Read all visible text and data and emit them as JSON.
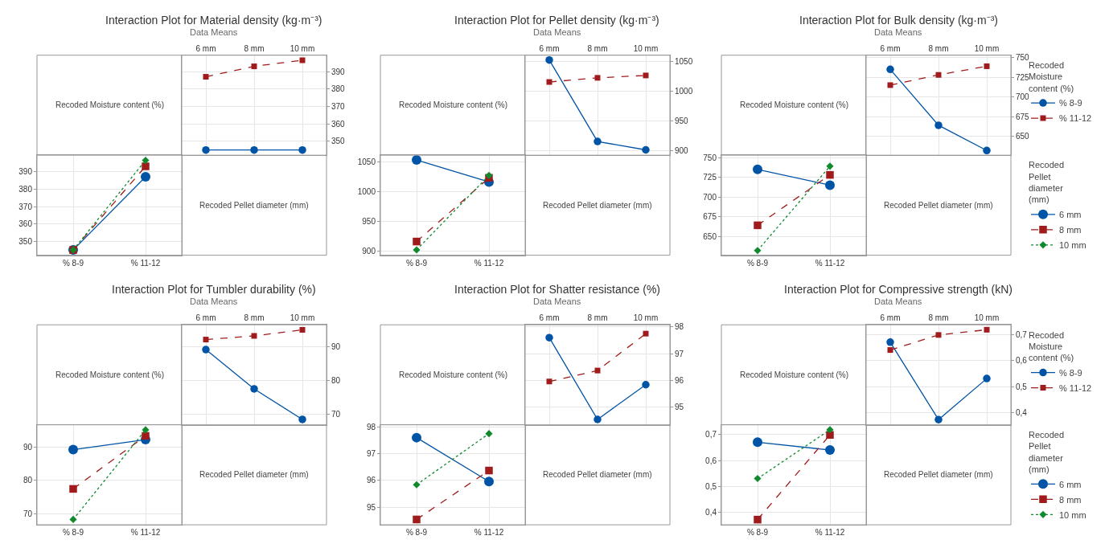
{
  "chart_data": [
    {
      "type": "line",
      "title": "Interaction Plot for Material density (kg·m⁻³)",
      "subtitle": "Data Means",
      "xlabel": "Recoded Pellet diameter (mm)",
      "categories": [
        "6 mm",
        "8 mm",
        "10 mm"
      ],
      "ylim": [
        342,
        399.5
      ],
      "yticks": [
        350,
        360,
        370,
        380,
        390
      ],
      "grid": true,
      "series": [
        {
          "color": "#0054a6",
          "marker": "circle",
          "line_style": "solid",
          "values": [
            345,
            345,
            345
          ]
        },
        {
          "color": "#a01c1c",
          "marker": "square",
          "line_style": "dashed",
          "values": [
            387.1,
            393.1,
            396.6
          ]
        }
      ]
    },
    {
      "type": "line",
      "xlabel": "Recoded Moisture content (%)",
      "categories": [
        "% 8-9",
        "% 11-12"
      ],
      "ylim": [
        342,
        399.5
      ],
      "yticks": [
        350,
        360,
        370,
        380,
        390
      ],
      "grid": true,
      "series": [
        {
          "color": "#0054a6",
          "marker": "circle",
          "line_style": "solid",
          "values": [
            345,
            387.1
          ]
        },
        {
          "color": "#a01c1c",
          "marker": "square",
          "line_style": "dashed",
          "values": [
            345,
            393.1
          ]
        },
        {
          "color": "#118a2e",
          "marker": "diamond",
          "line_style": "dotted",
          "values": [
            345,
            396.6
          ]
        }
      ]
    },
    {
      "type": "line",
      "title": "Interaction Plot for Pellet density (kg·m⁻³)",
      "subtitle": "Data Means",
      "xlabel": "Recoded Pellet diameter (mm)",
      "categories": [
        "6 mm",
        "8 mm",
        "10 mm"
      ],
      "ylim": [
        893,
        1061
      ],
      "yticks": [
        900,
        950,
        1000,
        1050
      ],
      "grid": true,
      "series": [
        {
          "color": "#0054a6",
          "marker": "circle",
          "line_style": "solid",
          "values": [
            1053,
            916,
            902
          ]
        },
        {
          "color": "#a01c1c",
          "marker": "square",
          "line_style": "dashed",
          "values": [
            1016,
            1023,
            1027
          ]
        }
      ]
    },
    {
      "type": "line",
      "xlabel": "Recoded Moisture content (%)",
      "categories": [
        "% 8-9",
        "% 11-12"
      ],
      "ylim": [
        893,
        1061
      ],
      "yticks": [
        900,
        950,
        1000,
        1050
      ],
      "grid": true,
      "series": [
        {
          "color": "#0054a6",
          "marker": "circle",
          "line_style": "solid",
          "values": [
            1053,
            1016
          ]
        },
        {
          "color": "#a01c1c",
          "marker": "square",
          "line_style": "dashed",
          "values": [
            916,
            1023
          ]
        },
        {
          "color": "#118a2e",
          "marker": "diamond",
          "line_style": "dotted",
          "values": [
            902,
            1027
          ]
        }
      ]
    },
    {
      "type": "line",
      "title": "Interaction Plot for Bulk density (kg·m⁻³)",
      "subtitle": "Data Means",
      "xlabel": "Recoded Pellet diameter (mm)",
      "legend_title": "Recoded Moisture content (%)",
      "legend": "right",
      "categories": [
        "6 mm",
        "8 mm",
        "10 mm"
      ],
      "ylim": [
        626,
        753
      ],
      "yticks": [
        650,
        675,
        700,
        725,
        750
      ],
      "grid": true,
      "series": [
        {
          "name": "% 8-9",
          "color": "#0054a6",
          "marker": "circle",
          "line_style": "solid",
          "values": [
            735,
            664,
            632
          ]
        },
        {
          "name": "% 11-12",
          "color": "#a01c1c",
          "marker": "square",
          "line_style": "dashed",
          "values": [
            715,
            728,
            739
          ]
        }
      ]
    },
    {
      "type": "line",
      "xlabel": "Recoded Moisture content (%)",
      "legend_title": "Recoded Pellet diameter (mm)",
      "legend": "right",
      "categories": [
        "% 8-9",
        "% 11-12"
      ],
      "ylim": [
        626,
        753
      ],
      "yticks": [
        650,
        675,
        700,
        725,
        750
      ],
      "grid": true,
      "series": [
        {
          "name": "6 mm",
          "color": "#0054a6",
          "marker": "circle",
          "line_style": "solid",
          "values": [
            735,
            715
          ]
        },
        {
          "name": "8 mm",
          "color": "#a01c1c",
          "marker": "square",
          "line_style": "dashed",
          "values": [
            664,
            728
          ]
        },
        {
          "name": "10 mm",
          "color": "#118a2e",
          "marker": "diamond",
          "line_style": "dotted",
          "values": [
            632,
            739
          ]
        }
      ]
    },
    {
      "type": "line",
      "title": "Interaction Plot for Tumbler durability (%)",
      "subtitle": "Data Means",
      "xlabel": "Recoded Pellet diameter (mm)",
      "categories": [
        "6 mm",
        "8 mm",
        "10 mm"
      ],
      "ylim": [
        66.8,
        96.6
      ],
      "yticks": [
        70,
        80,
        90
      ],
      "grid": true,
      "series": [
        {
          "color": "#0054a6",
          "marker": "circle",
          "line_style": "solid",
          "values": [
            89.2,
            77.5,
            68.4
          ]
        },
        {
          "color": "#a01c1c",
          "marker": "square",
          "line_style": "dashed",
          "values": [
            92.2,
            93.3,
            95.1
          ]
        }
      ]
    },
    {
      "type": "line",
      "xlabel": "Recoded Moisture content (%)",
      "categories": [
        "% 8-9",
        "% 11-12"
      ],
      "ylim": [
        66.8,
        96.6
      ],
      "yticks": [
        70,
        80,
        90
      ],
      "grid": true,
      "series": [
        {
          "color": "#0054a6",
          "marker": "circle",
          "line_style": "solid",
          "values": [
            89.2,
            92.2
          ]
        },
        {
          "color": "#a01c1c",
          "marker": "square",
          "line_style": "dashed",
          "values": [
            77.5,
            93.3
          ]
        },
        {
          "color": "#118a2e",
          "marker": "diamond",
          "line_style": "dotted",
          "values": [
            68.4,
            95.1
          ]
        }
      ]
    },
    {
      "type": "line",
      "title": "Interaction Plot for Shatter resistance (%)",
      "subtitle": "Data Means",
      "xlabel": "Recoded Pellet diameter (mm)",
      "categories": [
        "6 mm",
        "8 mm",
        "10 mm"
      ],
      "ylim": [
        94.34,
        98.08
      ],
      "yticks": [
        95,
        96,
        97,
        98
      ],
      "grid": true,
      "series": [
        {
          "color": "#0054a6",
          "marker": "circle",
          "line_style": "solid",
          "values": [
            97.6,
            94.54,
            95.84
          ]
        },
        {
          "color": "#a01c1c",
          "marker": "square",
          "line_style": "dashed",
          "values": [
            95.96,
            96.37,
            97.75
          ]
        }
      ]
    },
    {
      "type": "line",
      "xlabel": "Recoded Moisture content (%)",
      "categories": [
        "% 8-9",
        "% 11-12"
      ],
      "ylim": [
        94.34,
        98.08
      ],
      "yticks": [
        95,
        96,
        97,
        98
      ],
      "grid": true,
      "series": [
        {
          "color": "#0054a6",
          "marker": "circle",
          "line_style": "solid",
          "values": [
            97.6,
            95.96
          ]
        },
        {
          "color": "#a01c1c",
          "marker": "square",
          "line_style": "dashed",
          "values": [
            94.54,
            96.37
          ]
        },
        {
          "color": "#118a2e",
          "marker": "diamond",
          "line_style": "dotted",
          "values": [
            95.84,
            97.75
          ]
        }
      ]
    },
    {
      "type": "line",
      "title": "Interaction Plot for Compressive strength (kN)",
      "subtitle": "Data Means",
      "xlabel": "Recoded Pellet diameter (mm)",
      "legend_title": "Recoded Moisture content (%)",
      "legend": "right",
      "categories": [
        "6 mm",
        "8 mm",
        "10 mm"
      ],
      "ylim": [
        0.353,
        0.738
      ],
      "yticks": [
        {
          "value": 0.4,
          "label": "0,4"
        },
        {
          "value": 0.5,
          "label": "0,5"
        },
        {
          "value": 0.6,
          "label": "0,6"
        },
        {
          "value": 0.7,
          "label": "0,7"
        }
      ],
      "grid": true,
      "series": [
        {
          "name": "% 8-9",
          "color": "#0054a6",
          "marker": "circle",
          "line_style": "solid",
          "values": [
            0.671,
            0.373,
            0.531
          ]
        },
        {
          "name": "% 11-12",
          "color": "#a01c1c",
          "marker": "square",
          "line_style": "dashed",
          "values": [
            0.641,
            0.699,
            0.719
          ]
        }
      ]
    },
    {
      "type": "line",
      "xlabel": "Recoded Moisture content (%)",
      "legend_title": "Recoded Pellet diameter (mm)",
      "legend": "right",
      "categories": [
        "% 8-9",
        "% 11-12"
      ],
      "ylim": [
        0.353,
        0.738
      ],
      "yticks": [
        {
          "value": 0.4,
          "label": "0,4"
        },
        {
          "value": 0.5,
          "label": "0,5"
        },
        {
          "value": 0.6,
          "label": "0,6"
        },
        {
          "value": 0.7,
          "label": "0,7"
        }
      ],
      "grid": true,
      "series": [
        {
          "name": "6 mm",
          "color": "#0054a6",
          "marker": "circle",
          "line_style": "solid",
          "values": [
            0.671,
            0.641
          ]
        },
        {
          "name": "8 mm",
          "color": "#a01c1c",
          "marker": "square",
          "line_style": "dashed",
          "values": [
            0.373,
            0.699
          ]
        },
        {
          "name": "10 mm",
          "color": "#118a2e",
          "marker": "diamond",
          "line_style": "dotted",
          "values": [
            0.531,
            0.719
          ]
        }
      ]
    }
  ]
}
